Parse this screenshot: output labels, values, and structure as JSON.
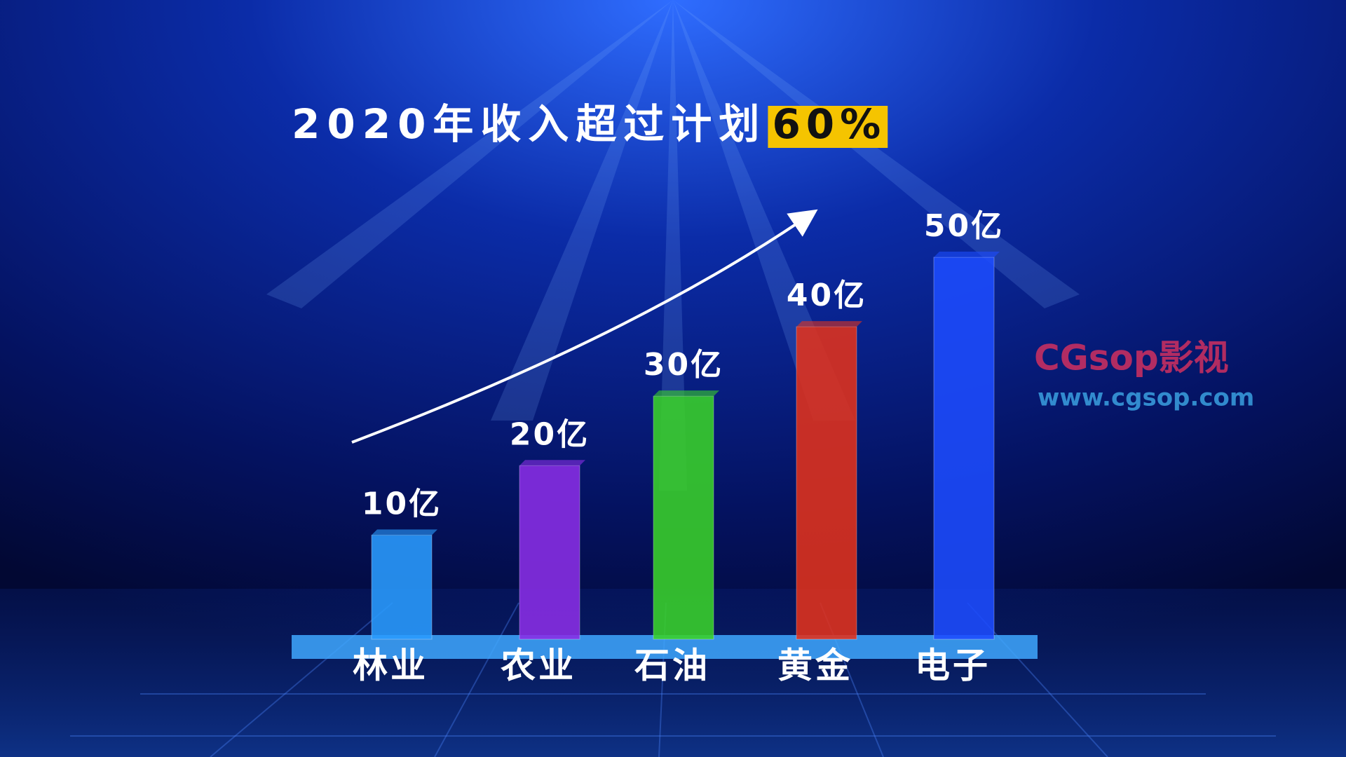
{
  "chart_data": {
    "type": "bar",
    "title": "2020年收入超过计划",
    "title_highlight": "60%",
    "categories": [
      "林业",
      "农业",
      "石油",
      "黄金",
      "电子"
    ],
    "values": [
      10,
      20,
      30,
      40,
      50
    ],
    "value_labels": [
      "10亿",
      "20亿",
      "30亿",
      "40亿",
      "50亿"
    ],
    "colors": [
      "#2a9cff",
      "#8a2ee6",
      "#3ad22a",
      "#e2321c",
      "#1d4cff"
    ],
    "ylim": [
      -5,
      50
    ],
    "watermark": "CGsop影视",
    "watermark_url": "www.cgsop.com"
  }
}
